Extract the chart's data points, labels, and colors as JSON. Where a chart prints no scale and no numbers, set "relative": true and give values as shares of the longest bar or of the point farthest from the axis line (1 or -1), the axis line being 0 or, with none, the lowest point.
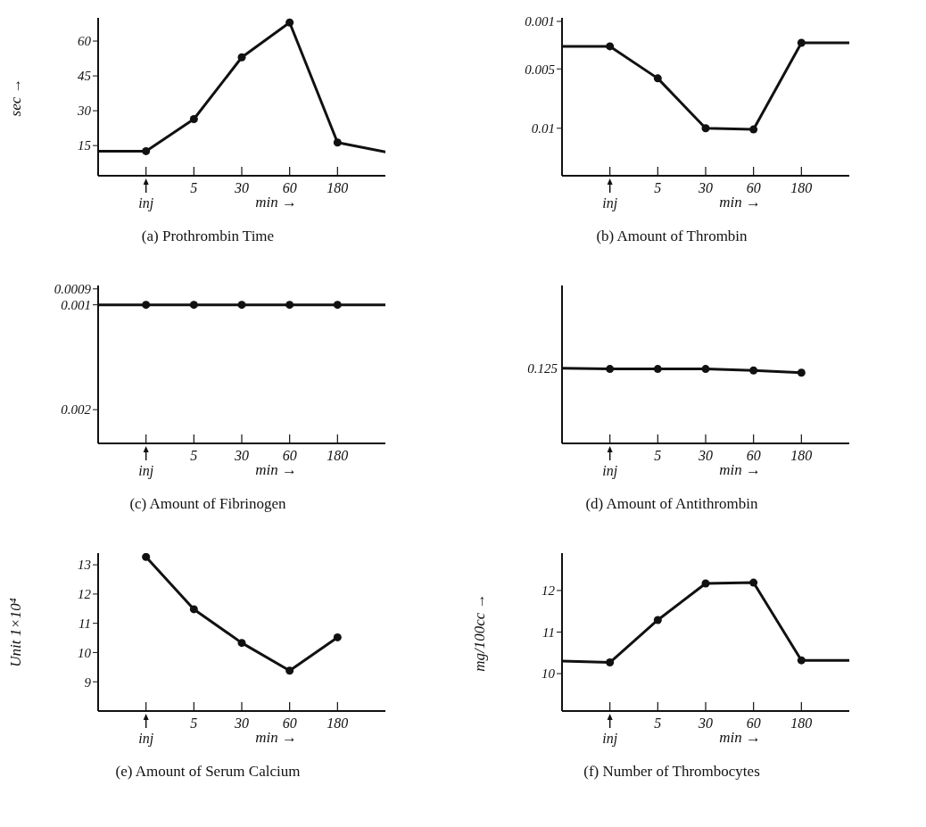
{
  "chart_data": [
    {
      "type": "line",
      "title": "(a) Prothrombin Time",
      "xlabel": "min →",
      "ylabel": "sec →",
      "categories": [
        null,
        "inj",
        "5",
        "30",
        "60",
        "180",
        null
      ],
      "marker": "circle",
      "series": [
        {
          "color": "#111111",
          "values": [
            12.6,
            12.6,
            26.4,
            53,
            68,
            16.3,
            12.3
          ]
        }
      ],
      "ylim": [
        2,
        70
      ],
      "yticks": [
        15,
        30,
        45,
        60
      ]
    },
    {
      "type": "line",
      "title": "(b) Amount of Thrombin",
      "xlabel": "min →",
      "categories": [
        null,
        "inj",
        "5",
        "30",
        "60",
        "180",
        null
      ],
      "marker": "circle",
      "series": [
        {
          "color": "#111111",
          "values": [
            0.0031,
            0.0031,
            0.0058,
            0.01,
            0.0101,
            0.0028,
            0.0028
          ]
        }
      ],
      "ylim": [
        0.014,
        0.0007
      ],
      "yticks": [
        0.001,
        0.005,
        0.01
      ]
    },
    {
      "type": "line",
      "title": "(c) Amount of Fibrinogen",
      "xlabel": "min →",
      "categories": [
        null,
        "inj",
        "5",
        "30",
        "60",
        "180",
        null
      ],
      "marker": "circle",
      "log": true,
      "series": [
        {
          "color": "#111111",
          "values": [
            0.001,
            0.001,
            0.001,
            0.001,
            0.001,
            0.001,
            0.001
          ]
        }
      ],
      "ylim": [
        0.0025,
        0.00088
      ],
      "yticks": [
        0.0009,
        0.001,
        0.002
      ]
    },
    {
      "type": "line",
      "title": "(d) Amount of Antithrombin",
      "xlabel": "min →",
      "categories": [
        null,
        "inj",
        "5",
        "30",
        "60",
        "180",
        null
      ],
      "marker": "circle",
      "relative": true,
      "series": [
        {
          "color": "#111111",
          "values": [
            1,
            0.99,
            0.99,
            0.99,
            0.97,
            0.94,
            null
          ]
        }
      ],
      "annotations": [
        "0.125"
      ]
    },
    {
      "type": "line",
      "title": "(e) Amount of Serum Calcium",
      "xlabel": "min →",
      "ylabel": "Unit 1×10⁴",
      "categories": [
        null,
        "inj",
        "5",
        "30",
        "60",
        "180",
        null
      ],
      "marker": "circle",
      "series": [
        {
          "color": "#111111",
          "values": [
            null,
            13.27,
            11.48,
            10.33,
            9.38,
            10.52,
            null
          ]
        }
      ],
      "ylim": [
        8,
        13.4
      ],
      "yticks": [
        9,
        10,
        11,
        12,
        13
      ]
    },
    {
      "type": "line",
      "title": "(f) Number of Thrombocytes",
      "xlabel": "min →",
      "ylabel": "mg/100cc →",
      "categories": [
        null,
        "inj",
        "5",
        "30",
        "60",
        "180",
        null
      ],
      "marker": "circle",
      "series": [
        {
          "color": "#111111",
          "values": [
            10.3,
            10.27,
            11.29,
            12.17,
            12.19,
            10.32,
            10.32
          ]
        }
      ],
      "ylim": [
        9.1,
        12.9
      ],
      "yticks": [
        10,
        11,
        12
      ]
    }
  ]
}
